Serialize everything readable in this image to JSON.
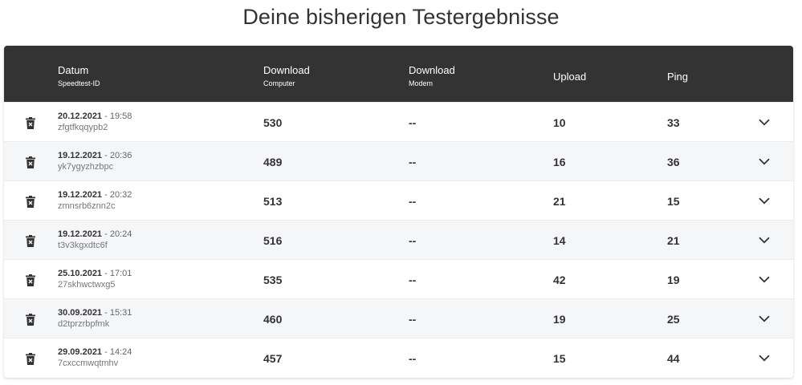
{
  "page": {
    "title": "Deine bisherigen Testergebnisse"
  },
  "table": {
    "headers": {
      "date_main": "Datum",
      "date_sub": "Speedtest-ID",
      "dl_computer_main": "Download",
      "dl_computer_sub": "Computer",
      "dl_modem_main": "Download",
      "dl_modem_sub": "Modem",
      "upload": "Upload",
      "ping": "Ping"
    },
    "rows": [
      {
        "date": "20.12.2021",
        "time": " - 19:58",
        "id": "zfgtfkqqypb2",
        "download_computer": "530",
        "download_modem": "--",
        "upload": "10",
        "ping": "33"
      },
      {
        "date": "19.12.2021",
        "time": " - 20:36",
        "id": "yk7ygyzhzbpc",
        "download_computer": "489",
        "download_modem": "--",
        "upload": "16",
        "ping": "36"
      },
      {
        "date": "19.12.2021",
        "time": " - 20:32",
        "id": "zmnsrb6znn2c",
        "download_computer": "513",
        "download_modem": "--",
        "upload": "21",
        "ping": "15"
      },
      {
        "date": "19.12.2021",
        "time": " - 20:24",
        "id": "t3v3kgxdtc6f",
        "download_computer": "516",
        "download_modem": "--",
        "upload": "14",
        "ping": "21"
      },
      {
        "date": "25.10.2021",
        "time": " - 17:01",
        "id": "27skhwctwxg5",
        "download_computer": "535",
        "download_modem": "--",
        "upload": "42",
        "ping": "19"
      },
      {
        "date": "30.09.2021",
        "time": " - 15:31",
        "id": "d2tprzrbpfmk",
        "download_computer": "460",
        "download_modem": "--",
        "upload": "19",
        "ping": "25"
      },
      {
        "date": "29.09.2021",
        "time": " - 14:24",
        "id": "7cxccmwqtmhv",
        "download_computer": "457",
        "download_modem": "--",
        "upload": "15",
        "ping": "44"
      }
    ]
  },
  "icons": {
    "row_delete": "trash-icon",
    "row_expand": "chevron-down-icon"
  },
  "colors": {
    "header_bg": "#333333",
    "alt_row_bg": "#f4f6f8"
  }
}
